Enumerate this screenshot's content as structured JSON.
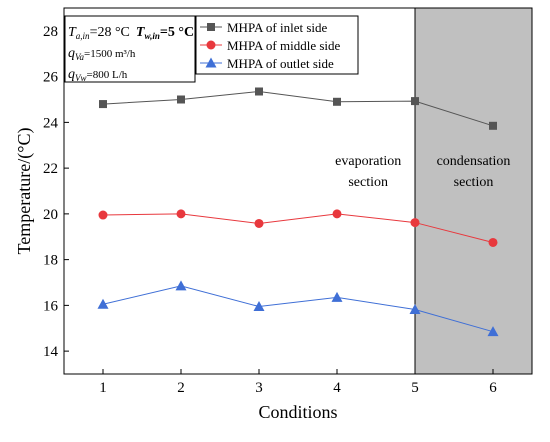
{
  "chart_data": {
    "type": "line",
    "title": "",
    "xlabel": "Conditions",
    "ylabel": "Temperature/(°C)",
    "categories": [
      "1",
      "2",
      "3",
      "4",
      "5",
      "6"
    ],
    "x": [
      1,
      2,
      3,
      4,
      5,
      6
    ],
    "xlim": [
      0.5,
      6.5
    ],
    "ylim": [
      13,
      29
    ],
    "yticks": [
      "14",
      "16",
      "18",
      "20",
      "22",
      "24",
      "26",
      "28"
    ],
    "grid": false,
    "legend_position": "top",
    "series": [
      {
        "name": "MHPA of inlet side",
        "values": [
          24.8,
          25.0,
          25.35,
          24.9,
          24.93,
          23.85
        ],
        "color": "#555555",
        "marker": "square"
      },
      {
        "name": "MHPA of middle side",
        "values": [
          19.95,
          20.0,
          19.58,
          20.0,
          19.62,
          18.75
        ],
        "color": "#e8383d",
        "marker": "circle"
      },
      {
        "name": "MHPA of outlet side",
        "values": [
          16.05,
          16.85,
          15.95,
          16.35,
          15.82,
          14.85
        ],
        "color": "#3f6fd6",
        "marker": "triangle"
      }
    ],
    "regions": [
      {
        "from": 5,
        "to": 6.5,
        "fill": "#c0c0c0",
        "label": [
          "condensation",
          "section"
        ]
      }
    ],
    "region_labels": {
      "evaporation": [
        "evaporation",
        "section"
      ]
    },
    "conditions_box": {
      "line1_a": "T",
      "line1_a_sub": "a,in",
      "line1_a_val": "=28 °C",
      "line1_b": "T",
      "line1_b_sub": "w,in",
      "line1_b_val": "=5 °C",
      "line2": "q",
      "line2_sub": "Va",
      "line2_val": "=1500 m³/h",
      "line3": "q",
      "line3_sub": "Vw",
      "line3_val": "=800 L/h"
    }
  }
}
